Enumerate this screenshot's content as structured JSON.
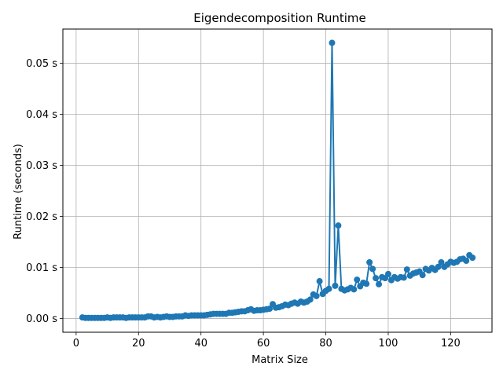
{
  "chart_data": {
    "type": "line",
    "title": "Eigendecomposition Runtime",
    "xlabel": "Matrix Size",
    "ylabel": "Runtime (seconds)",
    "x_ticks": [
      0,
      20,
      40,
      60,
      80,
      100,
      120
    ],
    "y_ticks": [
      0,
      0.01,
      0.02,
      0.03,
      0.04,
      0.05
    ],
    "y_tick_labels": [
      "0.00 s",
      "0.01 s",
      "0.02 s",
      "0.03 s",
      "0.04 s",
      "0.05 s"
    ],
    "xlim": [
      -4.25,
      133.25
    ],
    "ylim": [
      -0.0027,
      0.0567
    ],
    "grid": true,
    "series": [
      {
        "color": "#1f77b4",
        "marker": "circle",
        "x": [
          2,
          3,
          4,
          5,
          6,
          7,
          8,
          9,
          10,
          11,
          12,
          13,
          14,
          15,
          16,
          17,
          18,
          19,
          20,
          21,
          22,
          23,
          24,
          25,
          26,
          27,
          28,
          29,
          30,
          31,
          32,
          33,
          34,
          35,
          36,
          37,
          38,
          39,
          40,
          41,
          42,
          43,
          44,
          45,
          46,
          47,
          48,
          49,
          50,
          51,
          52,
          53,
          54,
          55,
          56,
          57,
          58,
          59,
          60,
          61,
          62,
          63,
          64,
          65,
          66,
          67,
          68,
          69,
          70,
          71,
          72,
          73,
          74,
          75,
          76,
          77,
          78,
          79,
          80,
          81,
          82,
          83,
          84,
          85,
          86,
          87,
          88,
          89,
          90,
          91,
          92,
          93,
          94,
          95,
          96,
          97,
          98,
          99,
          100,
          101,
          102,
          103,
          104,
          105,
          106,
          107,
          108,
          109,
          110,
          111,
          112,
          113,
          114,
          115,
          116,
          117,
          118,
          119,
          120,
          121,
          122,
          123,
          124,
          125,
          126,
          127
        ],
        "y": [
          0.0002,
          0.0001,
          0.0001,
          0.0001,
          0.0001,
          0.0001,
          0.0001,
          0.0001,
          0.0002,
          0.0001,
          0.0002,
          0.0002,
          0.0002,
          0.0002,
          0.0001,
          0.0002,
          0.0002,
          0.0002,
          0.0002,
          0.0002,
          0.0002,
          0.0004,
          0.0004,
          0.0002,
          0.0003,
          0.0002,
          0.0003,
          0.0004,
          0.0003,
          0.0003,
          0.0004,
          0.0004,
          0.0004,
          0.0006,
          0.0005,
          0.0006,
          0.0006,
          0.0006,
          0.0006,
          0.0006,
          0.0007,
          0.0008,
          0.0009,
          0.0009,
          0.0009,
          0.0009,
          0.0009,
          0.0011,
          0.0011,
          0.0012,
          0.0013,
          0.0014,
          0.0014,
          0.0016,
          0.0018,
          0.0015,
          0.0016,
          0.0016,
          0.0017,
          0.0018,
          0.0019,
          0.0028,
          0.0021,
          0.0022,
          0.0024,
          0.0027,
          0.0026,
          0.0029,
          0.0031,
          0.0029,
          0.0033,
          0.0031,
          0.0033,
          0.0037,
          0.0047,
          0.0044,
          0.0073,
          0.0048,
          0.0054,
          0.0058,
          0.054,
          0.0064,
          0.0182,
          0.0058,
          0.0055,
          0.0057,
          0.006,
          0.0057,
          0.0076,
          0.0063,
          0.007,
          0.0068,
          0.011,
          0.0097,
          0.0079,
          0.0067,
          0.0081,
          0.0079,
          0.0087,
          0.0075,
          0.0081,
          0.0078,
          0.0081,
          0.008,
          0.0096,
          0.0084,
          0.0088,
          0.009,
          0.0092,
          0.0085,
          0.0097,
          0.0094,
          0.0099,
          0.0095,
          0.0101,
          0.011,
          0.0101,
          0.0106,
          0.0111,
          0.0109,
          0.0111,
          0.0116,
          0.0117,
          0.0113,
          0.0124,
          0.0119
        ]
      }
    ]
  }
}
